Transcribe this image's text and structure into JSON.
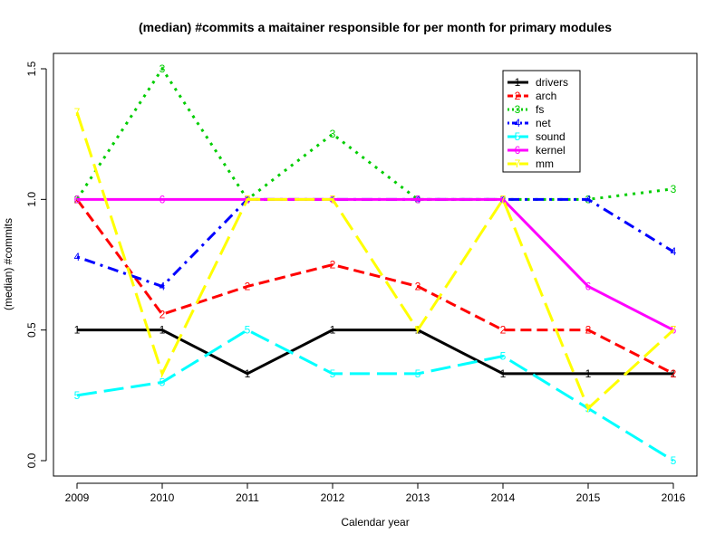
{
  "chart_data": {
    "type": "line",
    "title": "(median) #commits a maitainer responsible for per month for primary modules",
    "xlabel": "Calendar year",
    "ylabel": "(median) #commits",
    "x": [
      2009,
      2010,
      2011,
      2012,
      2013,
      2014,
      2015,
      2016
    ],
    "xlim": [
      2009,
      2016
    ],
    "ylim": [
      0.0,
      1.5
    ],
    "yticks": [
      0.0,
      0.5,
      1.0,
      1.5
    ],
    "ytick_labels": [
      "0.0",
      "0.5",
      "1.0",
      "1.5"
    ],
    "grid": false,
    "legend_position": "top-right",
    "series": [
      {
        "name": "drivers",
        "marker": "1",
        "color": "#000000",
        "dash": "solid",
        "values": [
          0.5,
          0.5,
          0.333,
          0.5,
          0.5,
          0.333,
          0.333,
          0.333
        ]
      },
      {
        "name": "arch",
        "marker": "2",
        "color": "#ff0000",
        "dash": "dashed",
        "values": [
          1.0,
          0.56,
          0.667,
          0.75,
          0.667,
          0.5,
          0.5,
          0.333
        ]
      },
      {
        "name": "fs",
        "marker": "3",
        "color": "#00cd00",
        "dash": "dotted",
        "values": [
          1.0,
          1.5,
          1.0,
          1.25,
          1.0,
          1.0,
          1.0,
          1.04
        ]
      },
      {
        "name": "net",
        "marker": "4",
        "color": "#0000ff",
        "dash": "dotdash",
        "values": [
          0.78,
          0.667,
          1.0,
          1.0,
          1.0,
          1.0,
          1.0,
          0.8
        ]
      },
      {
        "name": "sound",
        "marker": "5",
        "color": "#00ffff",
        "dash": "longdash",
        "values": [
          0.25,
          0.3,
          0.5,
          0.333,
          0.333,
          0.4,
          0.2,
          0.0
        ]
      },
      {
        "name": "kernel",
        "marker": "6",
        "color": "#ff00ff",
        "dash": "solid",
        "values": [
          1.0,
          1.0,
          1.0,
          1.0,
          1.0,
          1.0,
          0.667,
          0.5
        ]
      },
      {
        "name": "mm",
        "marker": "7",
        "color": "#ffff00",
        "dash": "longdash",
        "values": [
          1.333,
          0.333,
          1.0,
          1.0,
          0.5,
          1.0,
          0.2,
          0.5
        ]
      }
    ]
  }
}
